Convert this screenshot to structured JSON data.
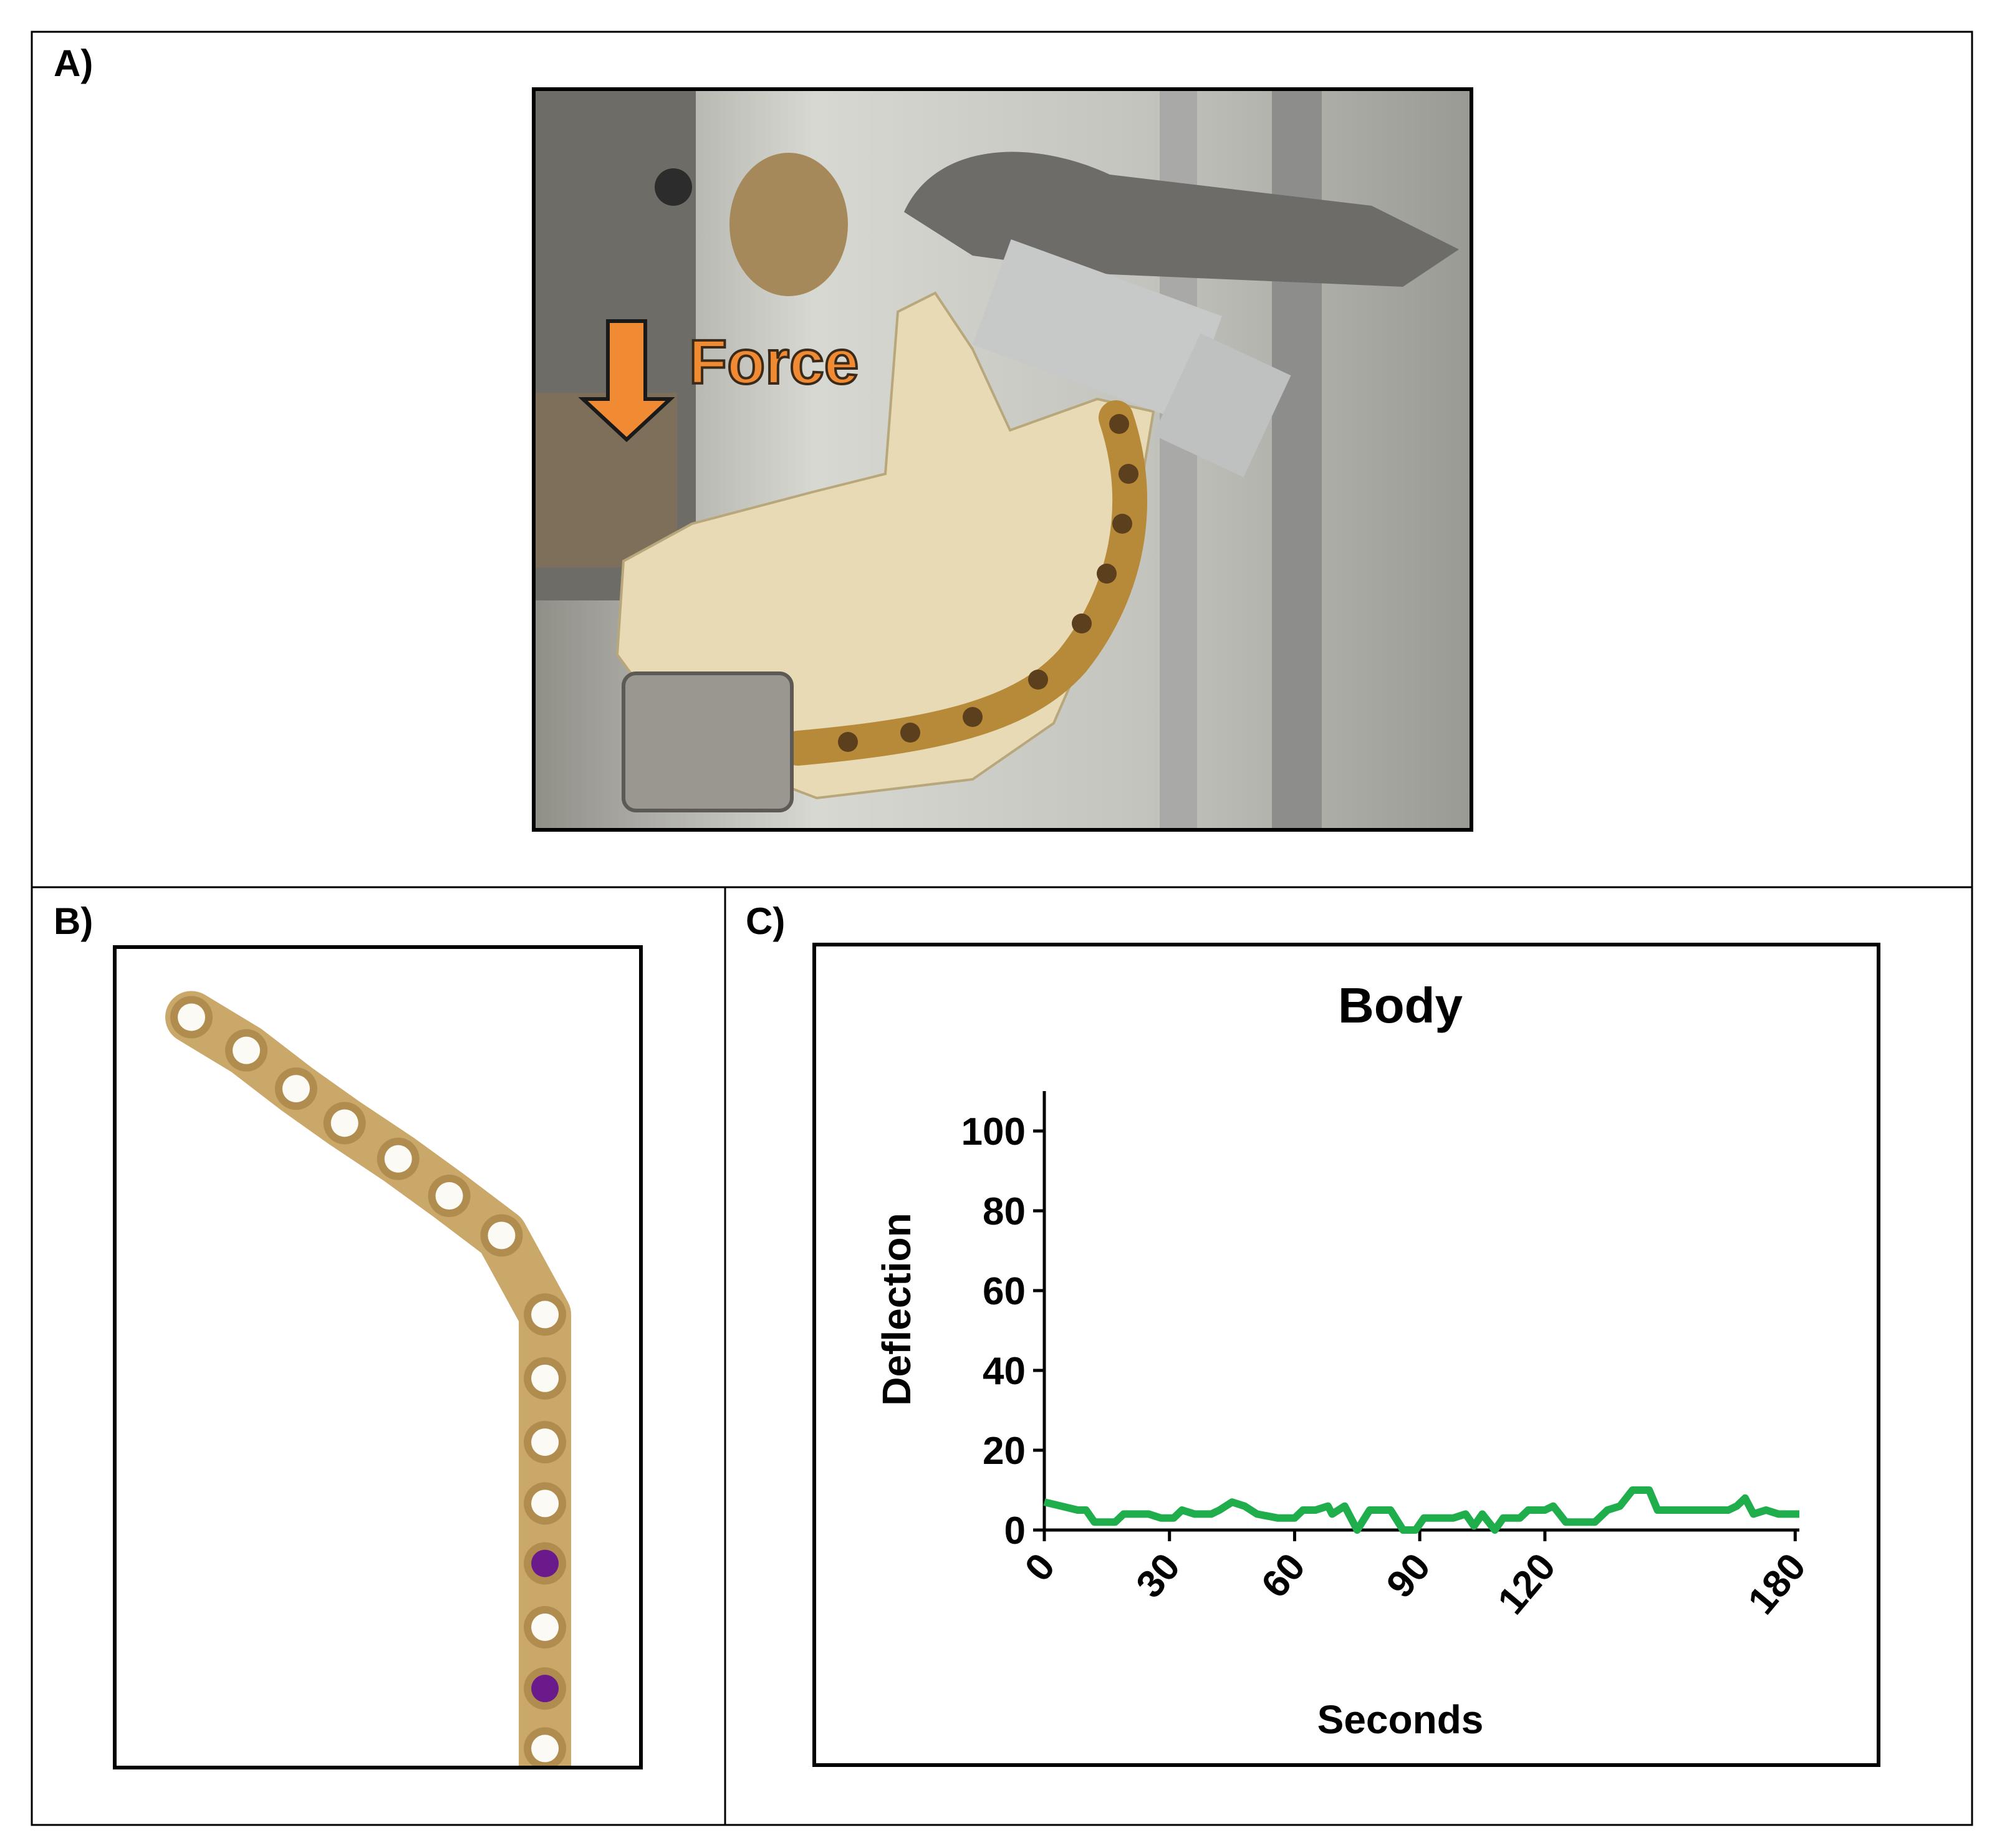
{
  "panels": {
    "a": "A)",
    "b": "B)",
    "c": "C)"
  },
  "annotation": "Force",
  "chart_data": {
    "type": "line",
    "title": "Body",
    "x_label": "Seconds",
    "y_label": "Deflection",
    "x": [
      0,
      4,
      8,
      10,
      12,
      17,
      19,
      25,
      28,
      31,
      33,
      36,
      40,
      42,
      45,
      48,
      51,
      56,
      60,
      62,
      65,
      68,
      69,
      72,
      75,
      78,
      83,
      86,
      89,
      91,
      98,
      101,
      103,
      105,
      108,
      110,
      114,
      116,
      120,
      122,
      125,
      132,
      135,
      138,
      141,
      145,
      147,
      164,
      166,
      168,
      170,
      173,
      176,
      181
    ],
    "series": [
      {
        "name": "Body",
        "color": "#1fae4b",
        "values": [
          7,
          6,
          5,
          5,
          2,
          2,
          4,
          4,
          3,
          3,
          5,
          4,
          4,
          5,
          7,
          6,
          4,
          3,
          3,
          5,
          5,
          6,
          4,
          6,
          0,
          5,
          5,
          0,
          0,
          3,
          3,
          4,
          1,
          4,
          0,
          3,
          3,
          5,
          5,
          6,
          2,
          2,
          5,
          6,
          10,
          10,
          5,
          5,
          6,
          8,
          4,
          5,
          4,
          4
        ]
      }
    ],
    "xlim": [
      0,
      181
    ],
    "xticks": [
      0,
      30,
      60,
      90,
      120,
      180
    ],
    "ylim": [
      0,
      110
    ],
    "yticks": [
      0,
      20,
      40,
      60,
      80,
      100
    ]
  }
}
